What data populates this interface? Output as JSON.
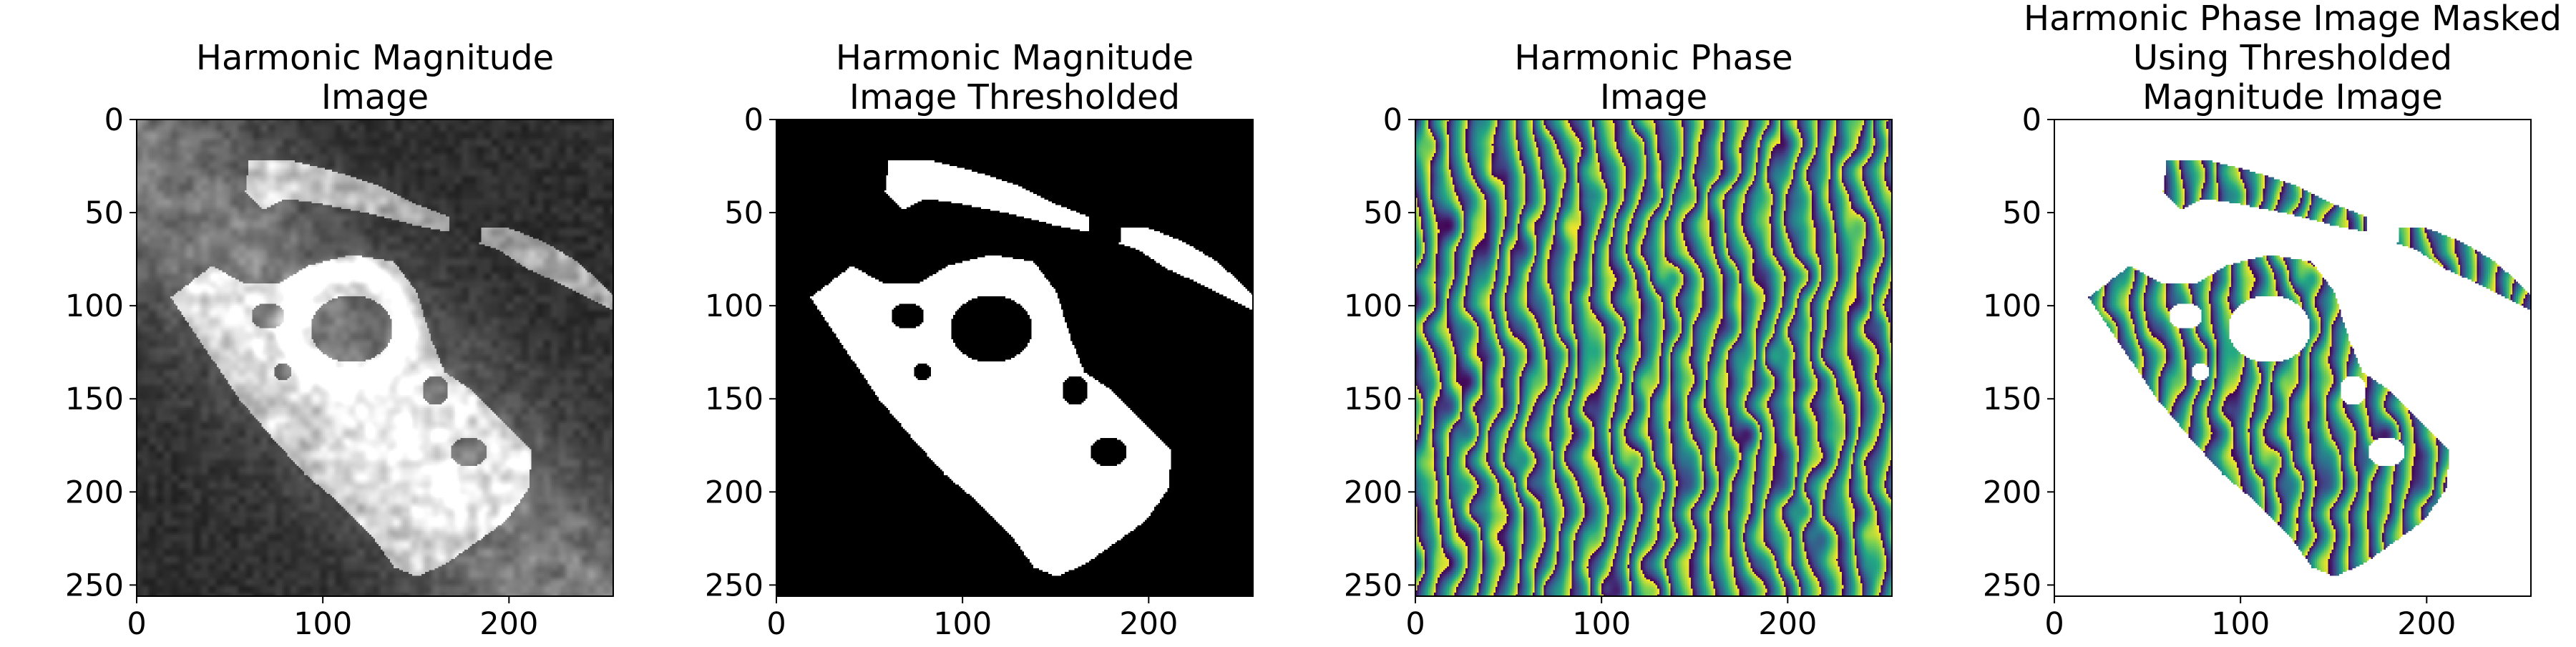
{
  "chart_data": [
    {
      "type": "heatmap",
      "title": [
        "Harmonic Magnitude",
        "Image"
      ],
      "colormap": "gray",
      "content": "magnitude",
      "xlim": [
        0,
        256
      ],
      "ylim": [
        256,
        0
      ],
      "xticks": [
        0,
        100,
        200
      ],
      "yticks": [
        0,
        50,
        100,
        150,
        200,
        250
      ]
    },
    {
      "type": "heatmap",
      "title": [
        "Harmonic Magnitude",
        "Image Thresholded"
      ],
      "colormap": "binary",
      "content": "threshold",
      "xlim": [
        0,
        256
      ],
      "ylim": [
        256,
        0
      ],
      "xticks": [
        0,
        100,
        200
      ],
      "yticks": [
        0,
        50,
        100,
        150,
        200,
        250
      ]
    },
    {
      "type": "heatmap",
      "title": [
        "Harmonic Phase",
        "Image"
      ],
      "colormap": "viridis",
      "content": "phase",
      "xlim": [
        0,
        256
      ],
      "ylim": [
        256,
        0
      ],
      "xticks": [
        0,
        100,
        200
      ],
      "yticks": [
        0,
        50,
        100,
        150,
        200,
        250
      ]
    },
    {
      "type": "heatmap",
      "title": [
        "Harmonic Phase Image Masked",
        "Using Thresholded",
        "Magnitude Image"
      ],
      "colormap": "viridis",
      "content": "masked-phase",
      "xlim": [
        0,
        256
      ],
      "ylim": [
        256,
        0
      ],
      "xticks": [
        0,
        100,
        200
      ],
      "yticks": [
        0,
        50,
        100,
        150,
        200,
        250
      ]
    }
  ]
}
